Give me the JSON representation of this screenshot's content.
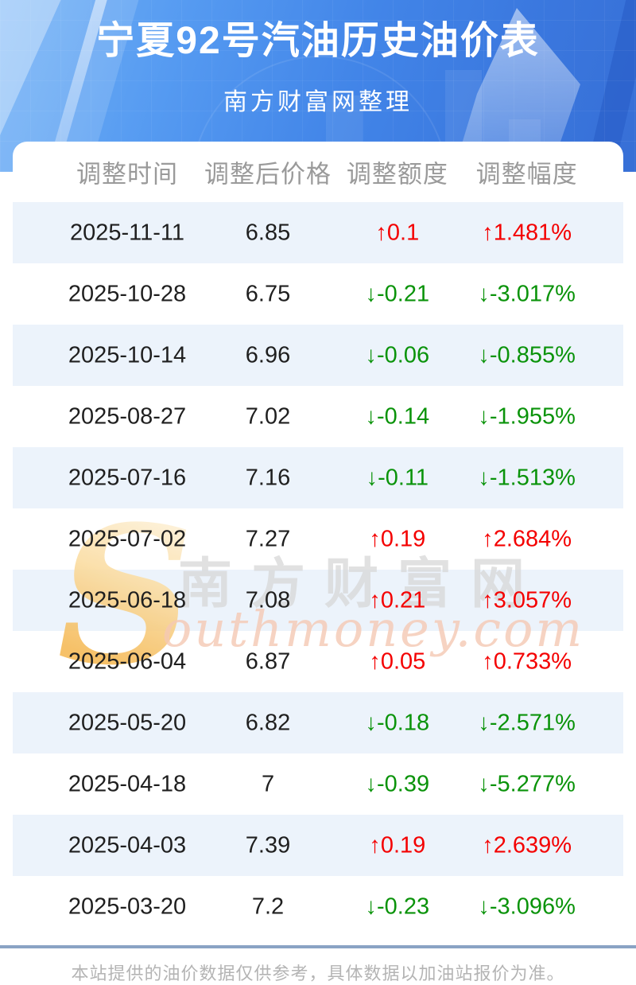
{
  "header": {
    "title": "宁夏92号汽油历史油价表",
    "subtitle": "南方财富网整理"
  },
  "table": {
    "columns": [
      "调整时间",
      "调整后价格",
      "调整额度",
      "调整幅度"
    ],
    "rows": [
      {
        "date": "2025-11-11",
        "price": "6.85",
        "change": "↑0.1",
        "percent": "↑1.481%",
        "direction": "up"
      },
      {
        "date": "2025-10-28",
        "price": "6.75",
        "change": "↓-0.21",
        "percent": "↓-3.017%",
        "direction": "down"
      },
      {
        "date": "2025-10-14",
        "price": "6.96",
        "change": "↓-0.06",
        "percent": "↓-0.855%",
        "direction": "down"
      },
      {
        "date": "2025-08-27",
        "price": "7.02",
        "change": "↓-0.14",
        "percent": "↓-1.955%",
        "direction": "down"
      },
      {
        "date": "2025-07-16",
        "price": "7.16",
        "change": "↓-0.11",
        "percent": "↓-1.513%",
        "direction": "down"
      },
      {
        "date": "2025-07-02",
        "price": "7.27",
        "change": "↑0.19",
        "percent": "↑2.684%",
        "direction": "up"
      },
      {
        "date": "2025-06-18",
        "price": "7.08",
        "change": "↑0.21",
        "percent": "↑3.057%",
        "direction": "up"
      },
      {
        "date": "2025-06-04",
        "price": "6.87",
        "change": "↑0.05",
        "percent": "↑0.733%",
        "direction": "up"
      },
      {
        "date": "2025-05-20",
        "price": "6.82",
        "change": "↓-0.18",
        "percent": "↓-2.571%",
        "direction": "down"
      },
      {
        "date": "2025-04-18",
        "price": "7",
        "change": "↓-0.39",
        "percent": "↓-5.277%",
        "direction": "down"
      },
      {
        "date": "2025-04-03",
        "price": "7.39",
        "change": "↑0.19",
        "percent": "↑2.639%",
        "direction": "up"
      },
      {
        "date": "2025-03-20",
        "price": "7.2",
        "change": "↓-0.23",
        "percent": "↓-3.096%",
        "direction": "down"
      }
    ]
  },
  "watermark": {
    "swoosh": "S",
    "cn": "南方财富网",
    "en": "outhmoney.com"
  },
  "footer": {
    "note": "本站提供的油价数据仅供参考，具体数据以加油站报价为准。"
  },
  "icons": {
    "up_arrow": "↑",
    "down_arrow": "↓"
  },
  "colors": {
    "up": "#f40000",
    "down": "#0a930a",
    "row_alt": "#ecf3fb",
    "hero_blue": "#4285e8",
    "divider": "#8aa3c4",
    "header_text": "#9a9a9a"
  },
  "chart_data": {
    "type": "table",
    "title": "宁夏92号汽油历史油价表",
    "subtitle": "南方财富网整理",
    "columns": [
      "调整时间",
      "调整后价格",
      "调整额度",
      "调整幅度"
    ],
    "rows": [
      [
        "2025-11-11",
        "6.85",
        "↑0.1",
        "↑1.481%"
      ],
      [
        "2025-10-28",
        "6.75",
        "↓-0.21",
        "↓-3.017%"
      ],
      [
        "2025-10-14",
        "6.96",
        "↓-0.06",
        "↓-0.855%"
      ],
      [
        "2025-08-27",
        "7.02",
        "↓-0.14",
        "↓-1.955%"
      ],
      [
        "2025-07-16",
        "7.16",
        "↓-0.11",
        "↓-1.513%"
      ],
      [
        "2025-07-02",
        "7.27",
        "↑0.19",
        "↑2.684%"
      ],
      [
        "2025-06-18",
        "7.08",
        "↑0.21",
        "↑3.057%"
      ],
      [
        "2025-06-04",
        "6.87",
        "↑0.05",
        "↑0.733%"
      ],
      [
        "2025-05-20",
        "6.82",
        "↓-0.18",
        "↓-2.571%"
      ],
      [
        "2025-04-18",
        "7",
        "↓-0.39",
        "↓-5.277%"
      ],
      [
        "2025-04-03",
        "7.39",
        "↑0.19",
        "↑2.639%"
      ],
      [
        "2025-03-20",
        "7.2",
        "↓-0.23",
        "↓-3.096%"
      ]
    ],
    "dates": [
      "2025-11-11",
      "2025-10-28",
      "2025-10-14",
      "2025-08-27",
      "2025-07-16",
      "2025-07-02",
      "2025-06-18",
      "2025-06-04",
      "2025-05-20",
      "2025-04-18",
      "2025-04-03",
      "2025-03-20"
    ],
    "prices": [
      6.85,
      6.75,
      6.96,
      7.02,
      7.16,
      7.27,
      7.08,
      6.87,
      6.82,
      7,
      7.39,
      7.2
    ],
    "changes": [
      0.1,
      -0.21,
      -0.06,
      -0.14,
      -0.11,
      0.19,
      0.21,
      0.05,
      -0.18,
      -0.39,
      0.19,
      -0.23
    ],
    "percent_changes": [
      1.481,
      -3.017,
      -0.855,
      -1.955,
      -1.513,
      2.684,
      3.057,
      0.733,
      -2.571,
      -5.277,
      2.639,
      -3.096
    ]
  }
}
